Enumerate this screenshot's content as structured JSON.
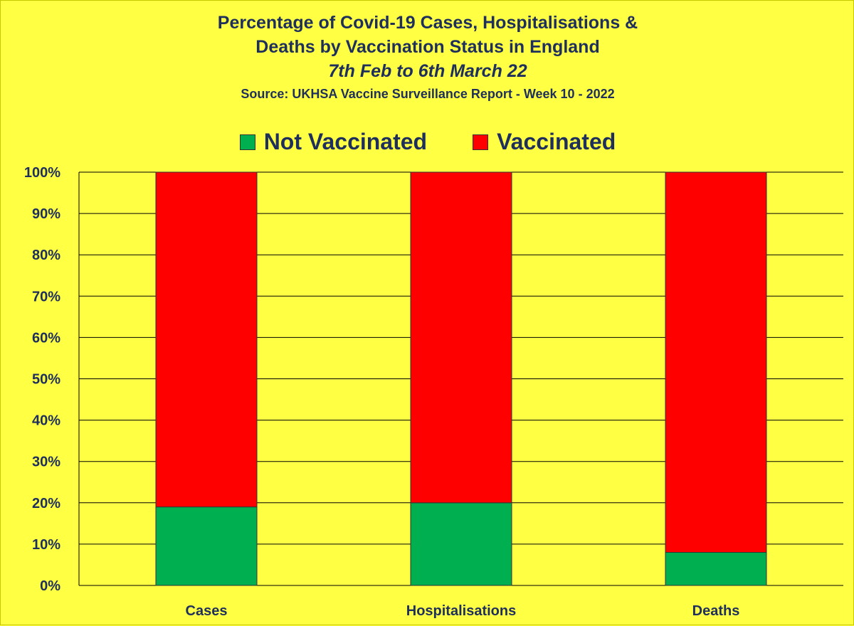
{
  "chart_data": {
    "type": "bar",
    "stacked": true,
    "title": "Percentage of Covid-19 Cases, Hospitalisations & Deaths by Vaccination Status in England",
    "title_lines": [
      "Percentage of Covid-19 Cases, Hospitalisations &",
      "Deaths by Vaccination Status in England"
    ],
    "subtitle": "7th Feb to 6th March 22",
    "source": "Source: UKHSA Vaccine Surveillance Report - Week 10 - 2022",
    "categories": [
      "Cases",
      "Hospitalisations",
      "Deaths"
    ],
    "series": [
      {
        "name": "Not Vaccinated",
        "color": "#00b050",
        "values": [
          19,
          20,
          8
        ]
      },
      {
        "name": "Vaccinated",
        "color": "#ff0000",
        "values": [
          81,
          80,
          92
        ]
      }
    ],
    "y_ticks": [
      "0%",
      "10%",
      "20%",
      "30%",
      "40%",
      "50%",
      "60%",
      "70%",
      "80%",
      "90%",
      "100%"
    ],
    "ylim": [
      0,
      100
    ],
    "xlabel": "",
    "ylabel": "",
    "legend_position": "top",
    "grid": true
  }
}
